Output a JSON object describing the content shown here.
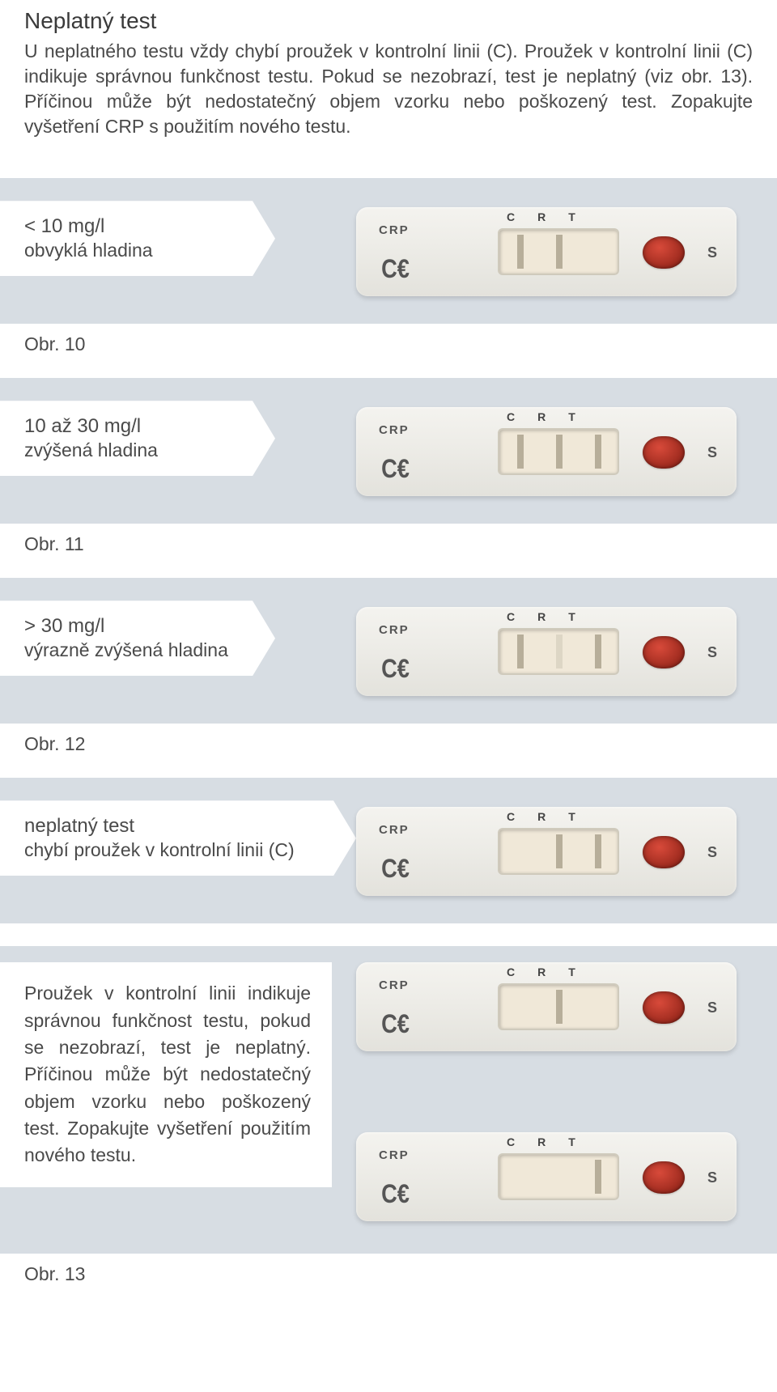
{
  "header": {
    "title": "Neplatný test",
    "body": "U neplatného testu vždy chybí proužek v kontrolní linii (C). Proužek v kontrolní linii (C) indikuje správnou funkčnost testu. Pokud se nezobrazí, test je neplatný (viz obr. 13). Příčinou může být nedostatečný objem vzorku nebo poškozený test. Zopakujte vyšetření CRP s použitím nového testu."
  },
  "cassette": {
    "crp": "CRP",
    "ce": "C€",
    "crt": "CRT",
    "s": "S",
    "body_gradient": [
      "#f4f3ef",
      "#edece7",
      "#e3e2dc"
    ],
    "window_bg": "#f0e8d8",
    "window_border": "#cfcabc",
    "line_color_strong": "#b7ae9a",
    "line_color_faint": "#ddd6c5",
    "well_colors": [
      "#d84a3a",
      "#9d2a1e",
      "#6b1810"
    ],
    "panel_bg": "#d7dde3"
  },
  "panels": [
    {
      "tag_line1": "< 10 mg/l",
      "tag_line2": "obvyklá hladina",
      "fig": "Obr. 10",
      "lines": {
        "c": "strong",
        "r": "strong",
        "t": "none"
      }
    },
    {
      "tag_line1": "10 až 30 mg/l",
      "tag_line2": "zvýšená hladina",
      "fig": "Obr. 11",
      "lines": {
        "c": "strong",
        "r": "strong",
        "t": "strong"
      }
    },
    {
      "tag_line1": "> 30 mg/l",
      "tag_line2": "výrazně zvýšená hladina",
      "fig": "Obr. 12",
      "lines": {
        "c": "strong",
        "r": "faint",
        "t": "strong"
      }
    },
    {
      "tag_line1": "neplatný test",
      "tag_line2": "chybí proužek v kontrolní linii (C)",
      "fig": "",
      "lines": {
        "c": "none",
        "r": "strong",
        "t": "strong"
      }
    }
  ],
  "tall_panel": {
    "text": "Proužek v kontrolní linii indikuje správnou funkčnost testu, pokud se nezobrazí, test je neplatný. Příčinou může být nedostatečný objem vzorku nebo poškozený test. Zopakujte vyšetření použitím nového testu.",
    "fig": "Obr. 13",
    "cassetteA_lines": {
      "c": "none",
      "r": "strong",
      "t": "none"
    },
    "cassetteB_lines": {
      "c": "none",
      "r": "none",
      "t": "strong"
    }
  },
  "typography": {
    "title_fontsize": 28,
    "body_fontsize": 23,
    "tag_fontsize": 24,
    "text_color": "#4a4a4a"
  }
}
